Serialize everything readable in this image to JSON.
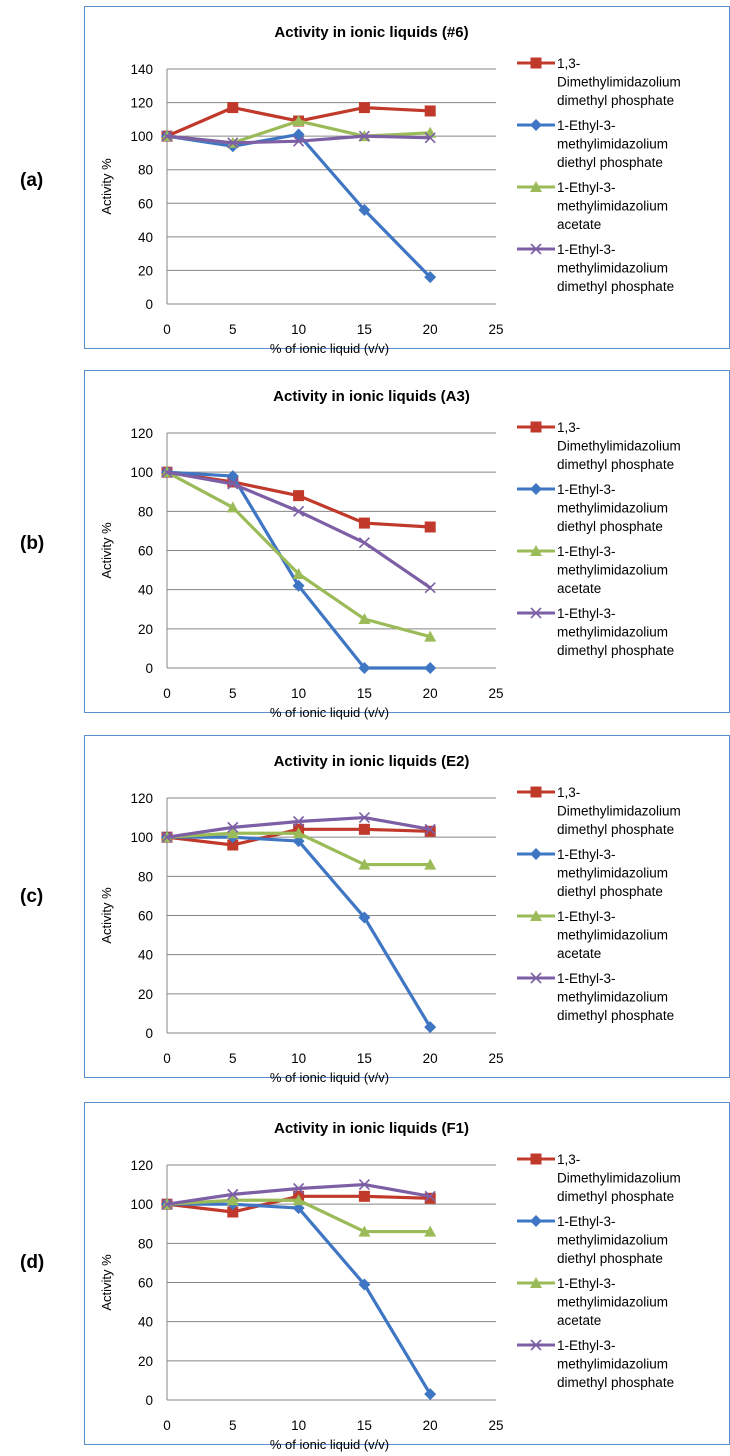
{
  "panel_labels": [
    "(a)",
    "(b)",
    "(c)",
    "(d)"
  ],
  "colors": {
    "red": "#c0392b",
    "blue": "#3f76c4",
    "green": "#9bbb59",
    "purple": "#7d5fa5",
    "frame": "#5b8fd0",
    "grid": "#868686"
  },
  "chart_data": [
    {
      "type": "line",
      "title": "Activity in ionic liquids (#6)",
      "xlabel": "% of ionic liquid  (v/v)",
      "ylabel": "Activity %",
      "xlim": [
        0,
        25
      ],
      "ylim": [
        0,
        140
      ],
      "x_ticks": [
        "0",
        "5",
        "10",
        "15",
        "20",
        "25"
      ],
      "y_ticks": [
        "0",
        "20",
        "40",
        "60",
        "80",
        "100",
        "120",
        "140"
      ],
      "x": [
        0,
        5,
        10,
        15,
        20
      ],
      "grid": true,
      "legend_position": "right",
      "series": [
        {
          "name": [
            "1,3-",
            "Dimethylimidazolium",
            "dimethyl phosphate"
          ],
          "marker": "square",
          "color": "red",
          "values": [
            100,
            117,
            109,
            117,
            115
          ]
        },
        {
          "name": [
            "1-Ethyl-3-",
            "methylimidazolium",
            "diethyl phosphate"
          ],
          "marker": "diamond",
          "color": "blue",
          "values": [
            100,
            94,
            101,
            56,
            16
          ]
        },
        {
          "name": [
            "1-Ethyl-3-",
            "methylimidazolium",
            "acetate"
          ],
          "marker": "triangle",
          "color": "green",
          "values": [
            100,
            96,
            109,
            100,
            102
          ]
        },
        {
          "name": [
            "1-Ethyl-3-",
            "methylimidazolium",
            "dimethyl phosphate"
          ],
          "marker": "x",
          "color": "purple",
          "values": [
            100,
            96,
            97,
            100,
            99
          ]
        }
      ]
    },
    {
      "type": "line",
      "title": "Activity in ionic liquids (A3)",
      "xlabel": "% of ionic liquid  (v/v)",
      "ylabel": "Activity %",
      "xlim": [
        0,
        25
      ],
      "ylim": [
        0,
        120
      ],
      "x_ticks": [
        "0",
        "5",
        "10",
        "15",
        "20",
        "25"
      ],
      "y_ticks": [
        "0",
        "20",
        "40",
        "60",
        "80",
        "100",
        "120"
      ],
      "x": [
        0,
        5,
        10,
        15,
        20
      ],
      "grid": true,
      "legend_position": "right",
      "series": [
        {
          "name": [
            "1,3-",
            "Dimethylimidazolium",
            "dimethyl phosphate"
          ],
          "marker": "square",
          "color": "red",
          "values": [
            100,
            95,
            88,
            74,
            72
          ]
        },
        {
          "name": [
            "1-Ethyl-3-",
            "methylimidazolium",
            "diethyl phosphate"
          ],
          "marker": "diamond",
          "color": "blue",
          "values": [
            100,
            98,
            42,
            0,
            0
          ]
        },
        {
          "name": [
            "1-Ethyl-3-",
            "methylimidazolium",
            "acetate"
          ],
          "marker": "triangle",
          "color": "green",
          "values": [
            100,
            82,
            48,
            25,
            16
          ]
        },
        {
          "name": [
            "1-Ethyl-3-",
            "methylimidazolium",
            "dimethyl phosphate"
          ],
          "marker": "x",
          "color": "purple",
          "values": [
            100,
            94,
            80,
            64,
            41
          ]
        }
      ]
    },
    {
      "type": "line",
      "title": "Activity in ionic liquids (E2)",
      "xlabel": "% of ionic liquid  (v/v)",
      "ylabel": "Activity %",
      "xlim": [
        0,
        25
      ],
      "ylim": [
        0,
        120
      ],
      "x_ticks": [
        "0",
        "5",
        "10",
        "15",
        "20",
        "25"
      ],
      "y_ticks": [
        "0",
        "20",
        "40",
        "60",
        "80",
        "100",
        "120"
      ],
      "x": [
        0,
        5,
        10,
        15,
        20
      ],
      "grid": true,
      "legend_position": "right",
      "series": [
        {
          "name": [
            "1,3-",
            "Dimethylimidazolium",
            "dimethyl phosphate"
          ],
          "marker": "square",
          "color": "red",
          "values": [
            100,
            96,
            104,
            104,
            103
          ]
        },
        {
          "name": [
            "1-Ethyl-3-",
            "methylimidazolium",
            "diethyl phosphate"
          ],
          "marker": "diamond",
          "color": "blue",
          "values": [
            100,
            100,
            98,
            59,
            3
          ]
        },
        {
          "name": [
            "1-Ethyl-3-",
            "methylimidazolium",
            "acetate"
          ],
          "marker": "triangle",
          "color": "green",
          "values": [
            100,
            102,
            102,
            86,
            86
          ]
        },
        {
          "name": [
            "1-Ethyl-3-",
            "methylimidazolium",
            "dimethyl phosphate"
          ],
          "marker": "x",
          "color": "purple",
          "values": [
            100,
            105,
            108,
            110,
            104
          ]
        }
      ]
    },
    {
      "type": "line",
      "title": "Activity in ionic liquids (F1)",
      "xlabel": "% of ionic liquid  (v/v)",
      "ylabel": "Activity %",
      "xlim": [
        0,
        25
      ],
      "ylim": [
        0,
        120
      ],
      "x_ticks": [
        "0",
        "5",
        "10",
        "15",
        "20",
        "25"
      ],
      "y_ticks": [
        "0",
        "20",
        "40",
        "60",
        "80",
        "100",
        "120"
      ],
      "x": [
        0,
        5,
        10,
        15,
        20
      ],
      "grid": true,
      "legend_position": "right",
      "series": [
        {
          "name": [
            "1,3-",
            "Dimethylimidazolium",
            "dimethyl phosphate"
          ],
          "marker": "square",
          "color": "red",
          "values": [
            100,
            96,
            104,
            104,
            103
          ]
        },
        {
          "name": [
            "1-Ethyl-3-",
            "methylimidazolium",
            "diethyl phosphate"
          ],
          "marker": "diamond",
          "color": "blue",
          "values": [
            100,
            100,
            98,
            59,
            3
          ]
        },
        {
          "name": [
            "1-Ethyl-3-",
            "methylimidazolium",
            "acetate"
          ],
          "marker": "triangle",
          "color": "green",
          "values": [
            100,
            102,
            102,
            86,
            86
          ]
        },
        {
          "name": [
            "1-Ethyl-3-",
            "methylimidazolium",
            "dimethyl phosphate"
          ],
          "marker": "x",
          "color": "purple",
          "values": [
            100,
            105,
            108,
            110,
            104
          ]
        }
      ]
    }
  ]
}
